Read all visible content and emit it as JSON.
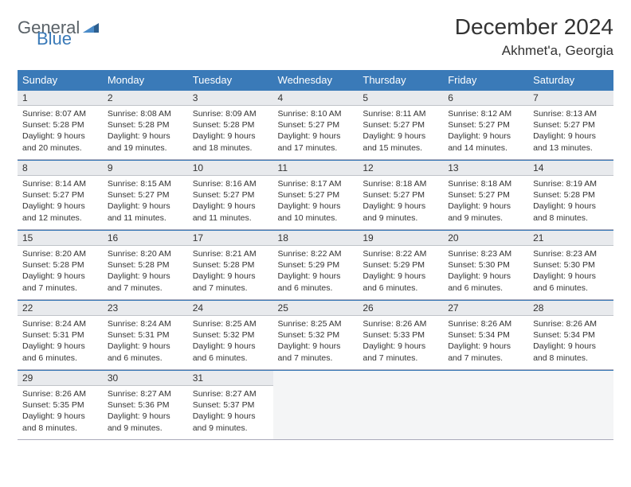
{
  "logo": {
    "text1": "General",
    "text2": "Blue",
    "color_general": "#5a6268",
    "color_blue": "#3a7ab8",
    "triangle_color": "#2d5f8f"
  },
  "header": {
    "month_title": "December 2024",
    "location": "Akhmet'a, Georgia"
  },
  "theme": {
    "header_bg": "#3a7ab8",
    "header_fg": "#ffffff",
    "daynum_bg": "#e8eaed",
    "border_color": "#3a7ab8",
    "empty_bg": "#f4f5f6"
  },
  "day_headers": [
    "Sunday",
    "Monday",
    "Tuesday",
    "Wednesday",
    "Thursday",
    "Friday",
    "Saturday"
  ],
  "days": [
    {
      "n": "1",
      "sunrise": "8:07 AM",
      "sunset": "5:28 PM",
      "daylight": "9 hours and 20 minutes."
    },
    {
      "n": "2",
      "sunrise": "8:08 AM",
      "sunset": "5:28 PM",
      "daylight": "9 hours and 19 minutes."
    },
    {
      "n": "3",
      "sunrise": "8:09 AM",
      "sunset": "5:28 PM",
      "daylight": "9 hours and 18 minutes."
    },
    {
      "n": "4",
      "sunrise": "8:10 AM",
      "sunset": "5:27 PM",
      "daylight": "9 hours and 17 minutes."
    },
    {
      "n": "5",
      "sunrise": "8:11 AM",
      "sunset": "5:27 PM",
      "daylight": "9 hours and 15 minutes."
    },
    {
      "n": "6",
      "sunrise": "8:12 AM",
      "sunset": "5:27 PM",
      "daylight": "9 hours and 14 minutes."
    },
    {
      "n": "7",
      "sunrise": "8:13 AM",
      "sunset": "5:27 PM",
      "daylight": "9 hours and 13 minutes."
    },
    {
      "n": "8",
      "sunrise": "8:14 AM",
      "sunset": "5:27 PM",
      "daylight": "9 hours and 12 minutes."
    },
    {
      "n": "9",
      "sunrise": "8:15 AM",
      "sunset": "5:27 PM",
      "daylight": "9 hours and 11 minutes."
    },
    {
      "n": "10",
      "sunrise": "8:16 AM",
      "sunset": "5:27 PM",
      "daylight": "9 hours and 11 minutes."
    },
    {
      "n": "11",
      "sunrise": "8:17 AM",
      "sunset": "5:27 PM",
      "daylight": "9 hours and 10 minutes."
    },
    {
      "n": "12",
      "sunrise": "8:18 AM",
      "sunset": "5:27 PM",
      "daylight": "9 hours and 9 minutes."
    },
    {
      "n": "13",
      "sunrise": "8:18 AM",
      "sunset": "5:27 PM",
      "daylight": "9 hours and 9 minutes."
    },
    {
      "n": "14",
      "sunrise": "8:19 AM",
      "sunset": "5:28 PM",
      "daylight": "9 hours and 8 minutes."
    },
    {
      "n": "15",
      "sunrise": "8:20 AM",
      "sunset": "5:28 PM",
      "daylight": "9 hours and 7 minutes."
    },
    {
      "n": "16",
      "sunrise": "8:20 AM",
      "sunset": "5:28 PM",
      "daylight": "9 hours and 7 minutes."
    },
    {
      "n": "17",
      "sunrise": "8:21 AM",
      "sunset": "5:28 PM",
      "daylight": "9 hours and 7 minutes."
    },
    {
      "n": "18",
      "sunrise": "8:22 AM",
      "sunset": "5:29 PM",
      "daylight": "9 hours and 6 minutes."
    },
    {
      "n": "19",
      "sunrise": "8:22 AM",
      "sunset": "5:29 PM",
      "daylight": "9 hours and 6 minutes."
    },
    {
      "n": "20",
      "sunrise": "8:23 AM",
      "sunset": "5:30 PM",
      "daylight": "9 hours and 6 minutes."
    },
    {
      "n": "21",
      "sunrise": "8:23 AM",
      "sunset": "5:30 PM",
      "daylight": "9 hours and 6 minutes."
    },
    {
      "n": "22",
      "sunrise": "8:24 AM",
      "sunset": "5:31 PM",
      "daylight": "9 hours and 6 minutes."
    },
    {
      "n": "23",
      "sunrise": "8:24 AM",
      "sunset": "5:31 PM",
      "daylight": "9 hours and 6 minutes."
    },
    {
      "n": "24",
      "sunrise": "8:25 AM",
      "sunset": "5:32 PM",
      "daylight": "9 hours and 6 minutes."
    },
    {
      "n": "25",
      "sunrise": "8:25 AM",
      "sunset": "5:32 PM",
      "daylight": "9 hours and 7 minutes."
    },
    {
      "n": "26",
      "sunrise": "8:26 AM",
      "sunset": "5:33 PM",
      "daylight": "9 hours and 7 minutes."
    },
    {
      "n": "27",
      "sunrise": "8:26 AM",
      "sunset": "5:34 PM",
      "daylight": "9 hours and 7 minutes."
    },
    {
      "n": "28",
      "sunrise": "8:26 AM",
      "sunset": "5:34 PM",
      "daylight": "9 hours and 8 minutes."
    },
    {
      "n": "29",
      "sunrise": "8:26 AM",
      "sunset": "5:35 PM",
      "daylight": "9 hours and 8 minutes."
    },
    {
      "n": "30",
      "sunrise": "8:27 AM",
      "sunset": "5:36 PM",
      "daylight": "9 hours and 9 minutes."
    },
    {
      "n": "31",
      "sunrise": "8:27 AM",
      "sunset": "5:37 PM",
      "daylight": "9 hours and 9 minutes."
    }
  ],
  "labels": {
    "sunrise": "Sunrise:",
    "sunset": "Sunset:",
    "daylight": "Daylight:"
  }
}
